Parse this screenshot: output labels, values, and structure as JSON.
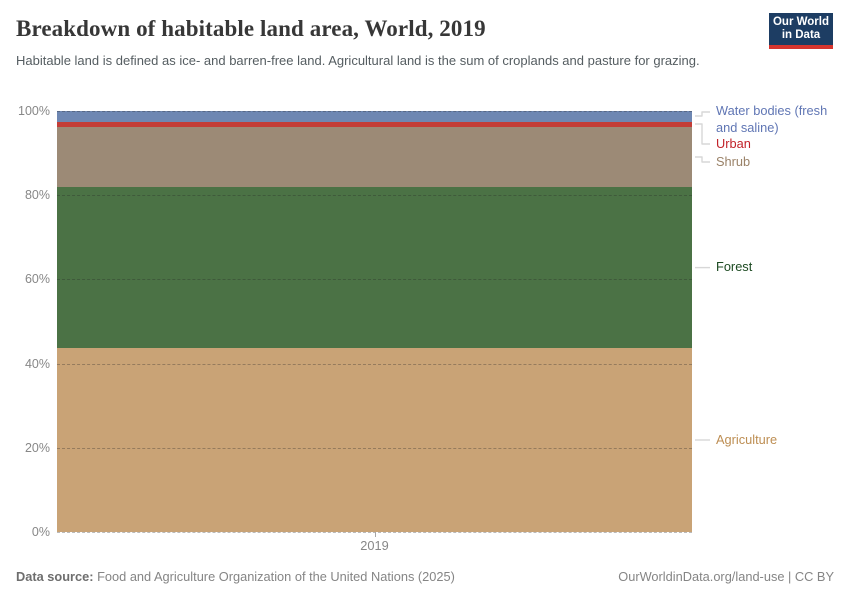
{
  "header": {
    "title": "Breakdown of habitable land area, World, 2019",
    "subtitle": "Habitable land is defined as ice- and barren-free land. Agricultural land is the sum of croplands and pasture for grazing.",
    "logo": {
      "line1": "Our World",
      "line2": "in Data",
      "bg_color": "#1d3d63",
      "accent_color": "#d7352e"
    }
  },
  "chart_data": {
    "type": "bar",
    "stacked": true,
    "percent_scale": true,
    "title": "Breakdown of habitable land area, World, 2019",
    "categories": [
      "2019"
    ],
    "series": [
      {
        "name": "Agriculture",
        "values": [
          43.7
        ],
        "color": "#c9a376",
        "label_color": "#bd8e53"
      },
      {
        "name": "Forest",
        "values": [
          38.2
        ],
        "color": "#4b7245",
        "label_color": "#1c4a21"
      },
      {
        "name": "Shrub",
        "values": [
          14.4
        ],
        "color": "#9c8a76",
        "label_color": "#9a8268"
      },
      {
        "name": "Urban",
        "values": [
          1.2
        ],
        "color": "#c33d37",
        "label_color": "#c2232a"
      },
      {
        "name": "Water bodies (fresh and saline)",
        "values": [
          2.5
        ],
        "color": "#6e87b2",
        "label_color": "#6076b4"
      }
    ],
    "xlabel": "",
    "ylabel": "",
    "ylim": [
      0,
      100
    ],
    "yticks": [
      0,
      20,
      40,
      60,
      80,
      100
    ],
    "ytick_suffix": "%",
    "grid": "dashed",
    "legend_position": "right",
    "legend_layout": [
      {
        "series": "Water bodies (fresh and saline)",
        "anchor_rel": 5,
        "label_center_rel": 1,
        "label_top_rel": -8
      },
      {
        "series": "Urban",
        "anchor_rel": 13,
        "label_center_rel": 33,
        "label_top_rel": 25
      },
      {
        "series": "Shrub",
        "anchor_rel": 46,
        "label_center_rel": 51,
        "label_top_rel": 43
      },
      {
        "series": "Forest",
        "anchor_rel": 156.6,
        "label_center_rel": 156.6,
        "label_top_rel": 148
      },
      {
        "series": "Agriculture",
        "anchor_rel": 329,
        "label_center_rel": 329,
        "label_top_rel": 321
      }
    ]
  },
  "xaxis": {
    "tick_label": "2019"
  },
  "footer": {
    "datasource_label": "Data source:",
    "datasource_text": "Food and Agriculture Organization of the United Nations (2025)",
    "right_text": "OurWorldinData.org/land-use | CC BY"
  }
}
